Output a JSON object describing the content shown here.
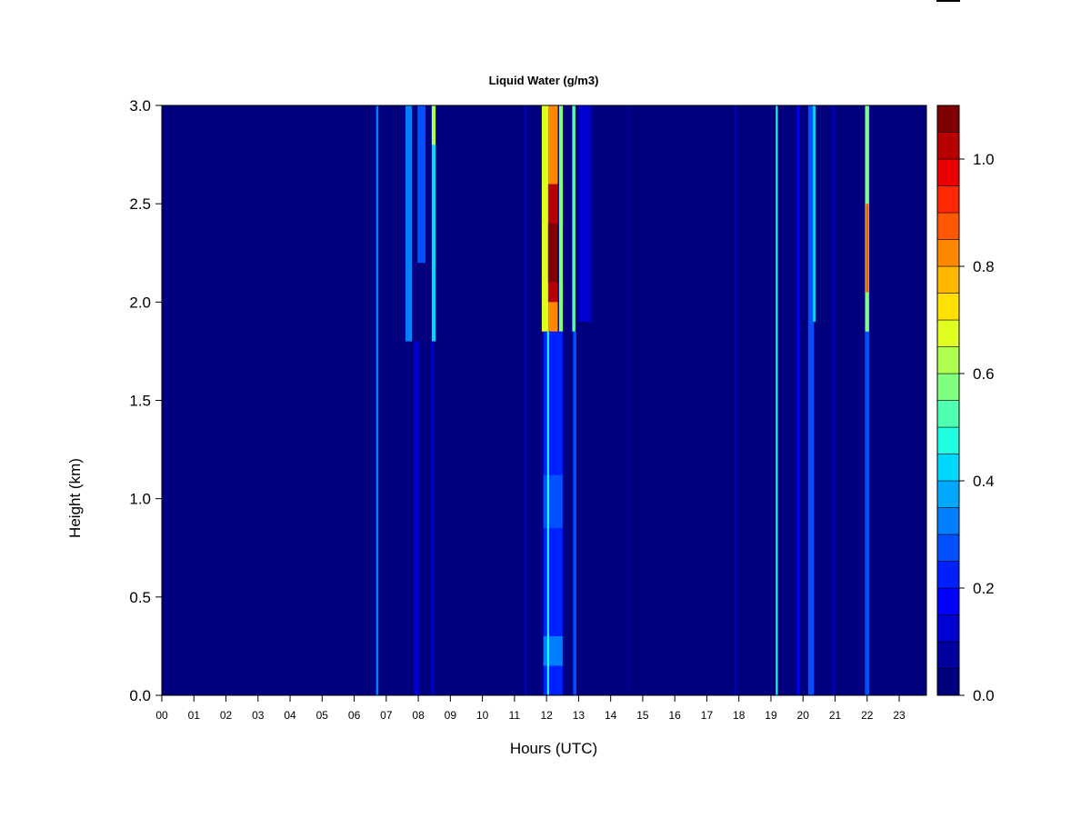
{
  "chart_data": {
    "type": "heatmap",
    "title": "Liquid Water (g/m3)",
    "xlabel": "Hours (UTC)",
    "ylabel": "Height (km)",
    "xlim": [
      0,
      23.85
    ],
    "ylim": [
      0.0,
      3.0
    ],
    "x_ticks": [
      "00",
      "01",
      "02",
      "03",
      "04",
      "05",
      "06",
      "07",
      "08",
      "09",
      "10",
      "11",
      "12",
      "13",
      "14",
      "15",
      "16",
      "17",
      "18",
      "19",
      "20",
      "21",
      "22",
      "23"
    ],
    "y_ticks": [
      "0.0",
      "0.5",
      "1.0",
      "1.5",
      "2.0",
      "2.5",
      "3.0"
    ],
    "colorbar": {
      "range": [
        0.0,
        1.1
      ],
      "step": 0.05,
      "ticks": [
        "0.0",
        "0.2",
        "0.4",
        "0.6",
        "0.8",
        "1.0"
      ],
      "colors": [
        "#00007F",
        "#00009F",
        "#0000CF",
        "#0000FF",
        "#0020FF",
        "#0050FF",
        "#0080FF",
        "#00A8FF",
        "#00D8FF",
        "#20FFE0",
        "#50FFB0",
        "#80FF80",
        "#B0FF50",
        "#E0FF20",
        "#FFE000",
        "#FFB800",
        "#FF8800",
        "#FF5800",
        "#FF2800",
        "#E80000",
        "#B80000",
        "#7F0000"
      ]
    },
    "background_value": 0.0,
    "features": [
      {
        "hour": 6.72,
        "width": 0.07,
        "bottom_km": 0.0,
        "top_km": 3.0,
        "value": 0.35
      },
      {
        "hour": 7.7,
        "width": 0.2,
        "bottom_km": 1.8,
        "top_km": 3.0,
        "value": 0.33
      },
      {
        "hour": 7.95,
        "width": 0.18,
        "bottom_km": 0.0,
        "top_km": 1.8,
        "value": 0.14
      },
      {
        "hour": 8.1,
        "width": 0.25,
        "bottom_km": 2.2,
        "top_km": 3.0,
        "value": 0.28
      },
      {
        "hour": 8.48,
        "width": 0.12,
        "bottom_km": 1.8,
        "top_km": 3.0,
        "value": 0.4
      },
      {
        "hour": 8.48,
        "width": 0.12,
        "bottom_km": 2.8,
        "top_km": 3.0,
        "value": 0.62
      },
      {
        "hour": 8.45,
        "width": 0.08,
        "bottom_km": 0.0,
        "top_km": 1.8,
        "value": 0.12
      },
      {
        "hour": 11.35,
        "width": 0.05,
        "bottom_km": 0.0,
        "top_km": 3.0,
        "value": 0.1
      },
      {
        "hour": 11.95,
        "width": 0.2,
        "bottom_km": 1.85,
        "top_km": 3.0,
        "value": 0.7
      },
      {
        "hour": 12.2,
        "width": 0.3,
        "bottom_km": 1.85,
        "top_km": 3.0,
        "value": 0.8
      },
      {
        "hour": 12.2,
        "width": 0.3,
        "bottom_km": 2.0,
        "top_km": 2.6,
        "value": 1.0
      },
      {
        "hour": 12.2,
        "width": 0.3,
        "bottom_km": 2.1,
        "top_km": 2.4,
        "value": 1.05
      },
      {
        "hour": 12.45,
        "width": 0.12,
        "bottom_km": 1.85,
        "top_km": 3.0,
        "value": 0.55
      },
      {
        "hour": 12.85,
        "width": 0.1,
        "bottom_km": 1.85,
        "top_km": 3.0,
        "value": 0.5
      },
      {
        "hour": 12.2,
        "width": 0.6,
        "bottom_km": 0.0,
        "top_km": 1.85,
        "value": 0.22
      },
      {
        "hour": 12.2,
        "width": 0.6,
        "bottom_km": 0.85,
        "top_km": 1.12,
        "value": 0.3
      },
      {
        "hour": 12.2,
        "width": 0.6,
        "bottom_km": 0.15,
        "top_km": 0.3,
        "value": 0.32
      },
      {
        "hour": 12.05,
        "width": 0.06,
        "bottom_km": 0.0,
        "top_km": 1.85,
        "value": 0.45
      },
      {
        "hour": 12.88,
        "width": 0.1,
        "bottom_km": 0.0,
        "top_km": 1.85,
        "value": 0.3
      },
      {
        "hour": 13.2,
        "width": 0.4,
        "bottom_km": 1.9,
        "top_km": 3.0,
        "value": 0.1
      },
      {
        "hour": 14.6,
        "width": 0.05,
        "bottom_km": 0.0,
        "top_km": 3.0,
        "value": 0.08
      },
      {
        "hour": 17.9,
        "width": 0.05,
        "bottom_km": 0.0,
        "top_km": 3.0,
        "value": 0.12
      },
      {
        "hour": 19.18,
        "width": 0.06,
        "bottom_km": 0.0,
        "top_km": 3.0,
        "value": 0.45
      },
      {
        "hour": 19.85,
        "width": 0.08,
        "bottom_km": 0.0,
        "top_km": 3.0,
        "value": 0.18
      },
      {
        "hour": 20.25,
        "width": 0.18,
        "bottom_km": 0.0,
        "top_km": 3.0,
        "value": 0.28
      },
      {
        "hour": 20.35,
        "width": 0.08,
        "bottom_km": 1.9,
        "top_km": 3.0,
        "value": 0.4
      },
      {
        "hour": 20.95,
        "width": 0.06,
        "bottom_km": 0.0,
        "top_km": 3.0,
        "value": 0.15
      },
      {
        "hour": 22.0,
        "width": 0.14,
        "bottom_km": 0.0,
        "top_km": 3.0,
        "value": 0.25
      },
      {
        "hour": 22.0,
        "width": 0.12,
        "bottom_km": 1.85,
        "top_km": 3.0,
        "value": 0.6
      },
      {
        "hour": 22.0,
        "width": 0.08,
        "bottom_km": 2.05,
        "top_km": 2.5,
        "value": 0.85
      }
    ]
  }
}
